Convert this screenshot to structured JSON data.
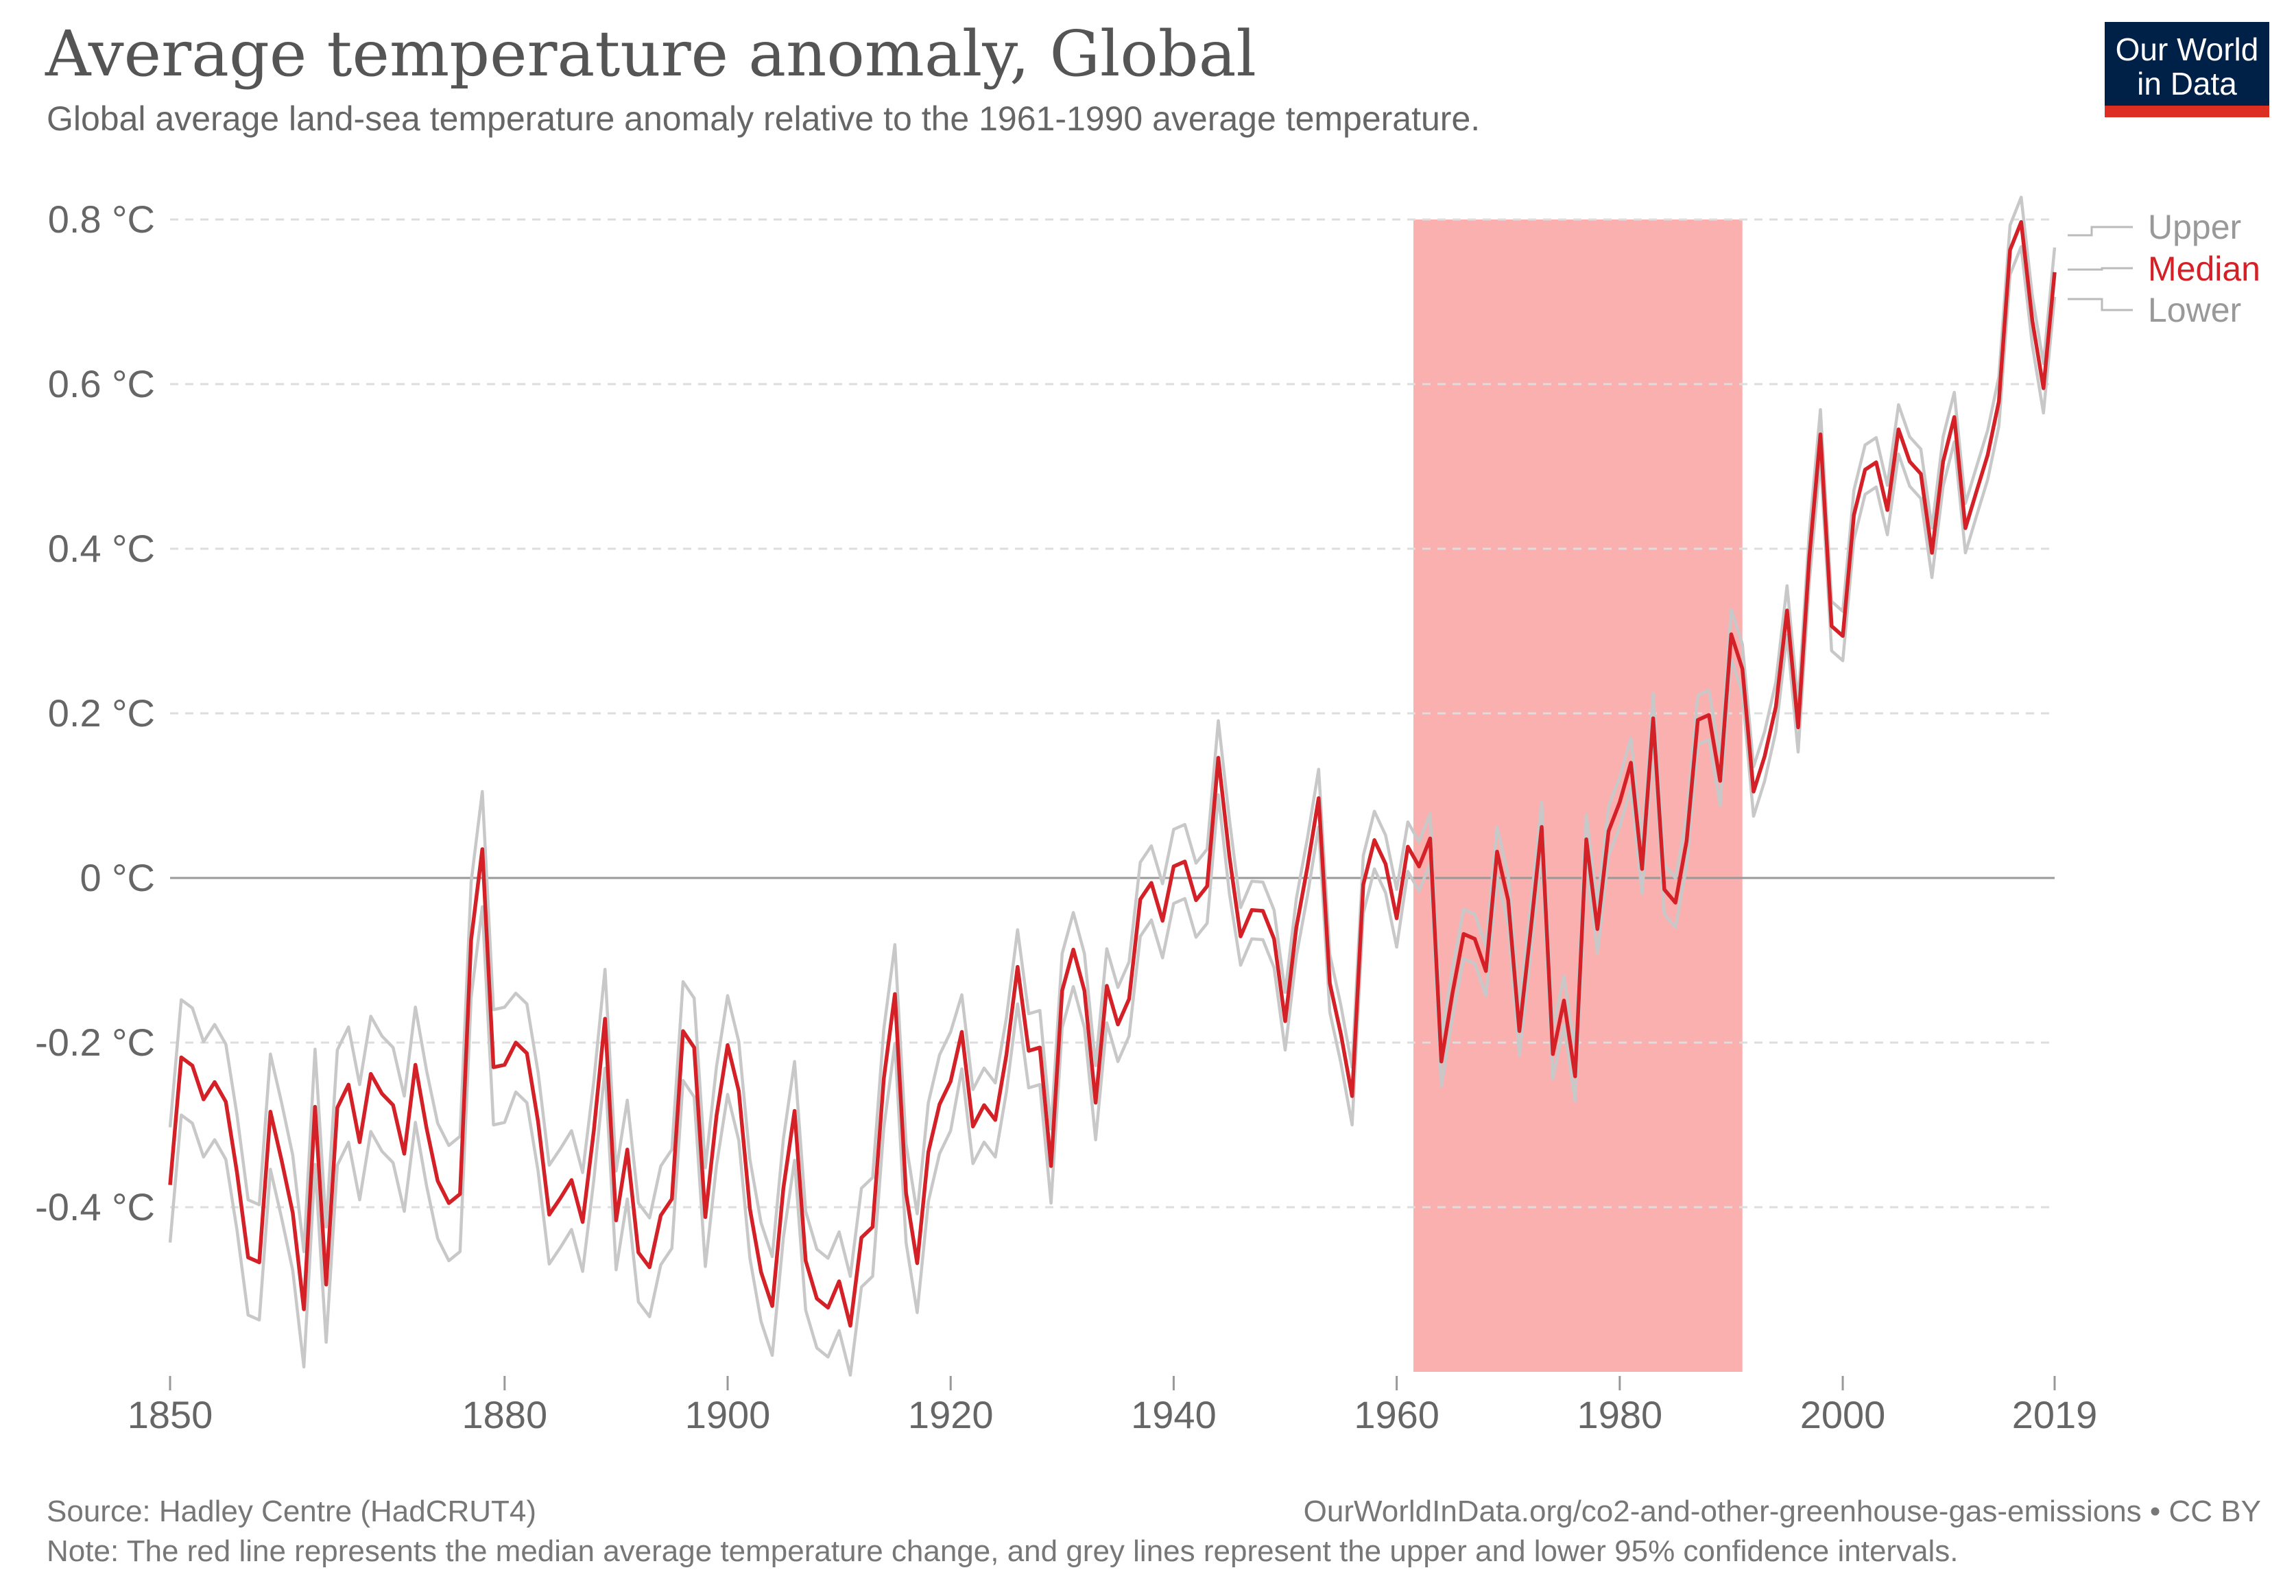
{
  "header": {
    "title": "Average temperature anomaly, Global",
    "subtitle": "Global average land-sea temperature anomaly relative to the 1961-1990 average temperature.",
    "logo_line1": "Our World",
    "logo_line2": "in Data"
  },
  "footer": {
    "source": "Source: Hadley Centre (HadCRUT4)",
    "url": "OurWorldInData.org/co2-and-other-greenhouse-gas-emissions • CC BY",
    "note": "Note: The red line represents the median average temperature change, and grey lines represent the upper and lower 95% confidence intervals."
  },
  "colors": {
    "median": "#d42027",
    "bounds": "#c8c8c8",
    "highlight": "#fbb0b0",
    "logo_bg": "#002147",
    "logo_bar": "#dc2f22"
  },
  "chart_data": {
    "type": "line",
    "title": "Average temperature anomaly, Global",
    "xlabel": "",
    "ylabel": "",
    "xlim": [
      1850,
      2019
    ],
    "ylim": [
      -0.6,
      0.8
    ],
    "grid": true,
    "legend_placement": "right",
    "y_ticks": [
      {
        "value": 0.8,
        "label": "0.8 °C"
      },
      {
        "value": 0.6,
        "label": "0.6 °C"
      },
      {
        "value": 0.4,
        "label": "0.4 °C"
      },
      {
        "value": 0.2,
        "label": "0.2 °C"
      },
      {
        "value": 0,
        "label": "0 °C"
      },
      {
        "value": -0.2,
        "label": "-0.2 °C"
      },
      {
        "value": -0.4,
        "label": "-0.4 °C"
      }
    ],
    "x_ticks": [
      {
        "value": 1850,
        "label": "1850"
      },
      {
        "value": 1880,
        "label": "1880"
      },
      {
        "value": 1900,
        "label": "1900"
      },
      {
        "value": 1920,
        "label": "1920"
      },
      {
        "value": 1940,
        "label": "1940"
      },
      {
        "value": 1960,
        "label": "1960"
      },
      {
        "value": 1980,
        "label": "1980"
      },
      {
        "value": 2000,
        "label": "2000"
      },
      {
        "value": 2019,
        "label": "2019"
      }
    ],
    "highlight_band": {
      "x_from": 1961.5,
      "x_to": 1991,
      "y_to": 0.8
    },
    "start_year": 1850,
    "series": [
      {
        "name": "Upper",
        "role": "upper"
      },
      {
        "name": "Median",
        "role": "median"
      },
      {
        "name": "Lower",
        "role": "lower"
      }
    ],
    "median": [
      -0.373,
      -0.218,
      -0.228,
      -0.269,
      -0.248,
      -0.272,
      -0.358,
      -0.461,
      -0.467,
      -0.284,
      -0.343,
      -0.407,
      -0.524,
      -0.278,
      -0.494,
      -0.279,
      -0.251,
      -0.321,
      -0.238,
      -0.262,
      -0.276,
      -0.335,
      -0.227,
      -0.304,
      -0.368,
      -0.395,
      -0.384,
      -0.075,
      0.035,
      -0.23,
      -0.227,
      -0.2,
      -0.213,
      -0.296,
      -0.409,
      -0.389,
      -0.367,
      -0.418,
      -0.307,
      -0.171,
      -0.416,
      -0.33,
      -0.455,
      -0.473,
      -0.41,
      -0.39,
      -0.186,
      -0.206,
      -0.412,
      -0.289,
      -0.203,
      -0.259,
      -0.402,
      -0.479,
      -0.52,
      -0.377,
      -0.283,
      -0.465,
      -0.511,
      -0.522,
      -0.49,
      -0.544,
      -0.437,
      -0.424,
      -0.244,
      -0.141,
      -0.383,
      -0.468,
      -0.333,
      -0.275,
      -0.247,
      -0.187,
      -0.302,
      -0.276,
      -0.294,
      -0.215,
      -0.108,
      -0.21,
      -0.206,
      -0.35,
      -0.137,
      -0.087,
      -0.137,
      -0.273,
      -0.131,
      -0.178,
      -0.147,
      -0.026,
      -0.006,
      -0.052,
      0.014,
      0.02,
      -0.027,
      -0.01,
      0.146,
      0.026,
      -0.071,
      -0.039,
      -0.04,
      -0.074,
      -0.174,
      -0.06,
      0.014,
      0.097,
      -0.128,
      -0.19,
      -0.265,
      -0.008,
      0.046,
      0.017,
      -0.049,
      0.038,
      0.014,
      0.048,
      -0.223,
      -0.14,
      -0.068,
      -0.074,
      -0.113,
      0.032,
      -0.027,
      -0.186,
      -0.065,
      0.062,
      -0.214,
      -0.149,
      -0.241,
      0.047,
      -0.062,
      0.057,
      0.092,
      0.14,
      0.011,
      0.194,
      -0.014,
      -0.03,
      0.045,
      0.192,
      0.198,
      0.118,
      0.296,
      0.254,
      0.105,
      0.148,
      0.208,
      0.325,
      0.183,
      0.39,
      0.539,
      0.306,
      0.294,
      0.441,
      0.496,
      0.505,
      0.447,
      0.545,
      0.506,
      0.491,
      0.395,
      0.506,
      0.56,
      0.425,
      0.47,
      0.514,
      0.579,
      0.763,
      0.797,
      0.677,
      0.595,
      0.736
    ],
    "ci_halfwidth_by_period": [
      {
        "from": 1850,
        "to": 1880,
        "value": 0.07
      },
      {
        "from": 1881,
        "to": 1920,
        "value": 0.06
      },
      {
        "from": 1921,
        "to": 1945,
        "value": 0.045
      },
      {
        "from": 1946,
        "to": 1960,
        "value": 0.035
      },
      {
        "from": 1961,
        "to": 2019,
        "value": 0.03
      }
    ]
  }
}
